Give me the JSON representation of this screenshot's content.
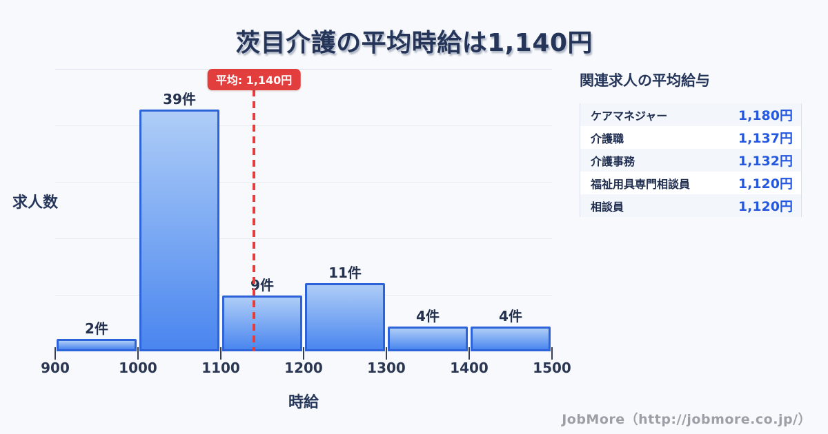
{
  "title": "茨目介護の平均時給は1,140円",
  "footer_credit": "JobMore（http://jobmore.co.jp/）",
  "colors": {
    "bar_fill_top": "#aecdf7",
    "bar_fill_bottom": "#4a86ef",
    "bar_border": "#2d63d8",
    "average_red": "#e33e3e",
    "value_blue": "#2457e0",
    "title_navy": "#25355a",
    "background": "#f7f9fc"
  },
  "chart_data": {
    "type": "bar",
    "subtype": "histogram",
    "bin_edges": [
      900,
      1000,
      1100,
      1200,
      1300,
      1400,
      1500
    ],
    "values": [
      2,
      39,
      9,
      11,
      4,
      4
    ],
    "bar_labels": [
      "2件",
      "39件",
      "9件",
      "11件",
      "4件",
      "4件"
    ],
    "x_tick_labels": [
      "900",
      "1000",
      "1100",
      "1200",
      "1300",
      "1400",
      "1500"
    ],
    "xlabel": "時給",
    "ylabel": "求人数",
    "xlim": [
      900,
      1500
    ],
    "ylim": [
      0,
      45.5
    ],
    "grid": "horizontal",
    "gridline_count": 5,
    "average": {
      "value": 1140,
      "label": "平均: 1,140円"
    }
  },
  "related_panel": {
    "title": "関連求人の平均給与",
    "rows": [
      {
        "label": "ケアマネジャー",
        "value": "1,180円"
      },
      {
        "label": "介護職",
        "value": "1,137円"
      },
      {
        "label": "介護事務",
        "value": "1,132円"
      },
      {
        "label": "福祉用具専門相談員",
        "value": "1,120円"
      },
      {
        "label": "相談員",
        "value": "1,120円"
      }
    ]
  }
}
